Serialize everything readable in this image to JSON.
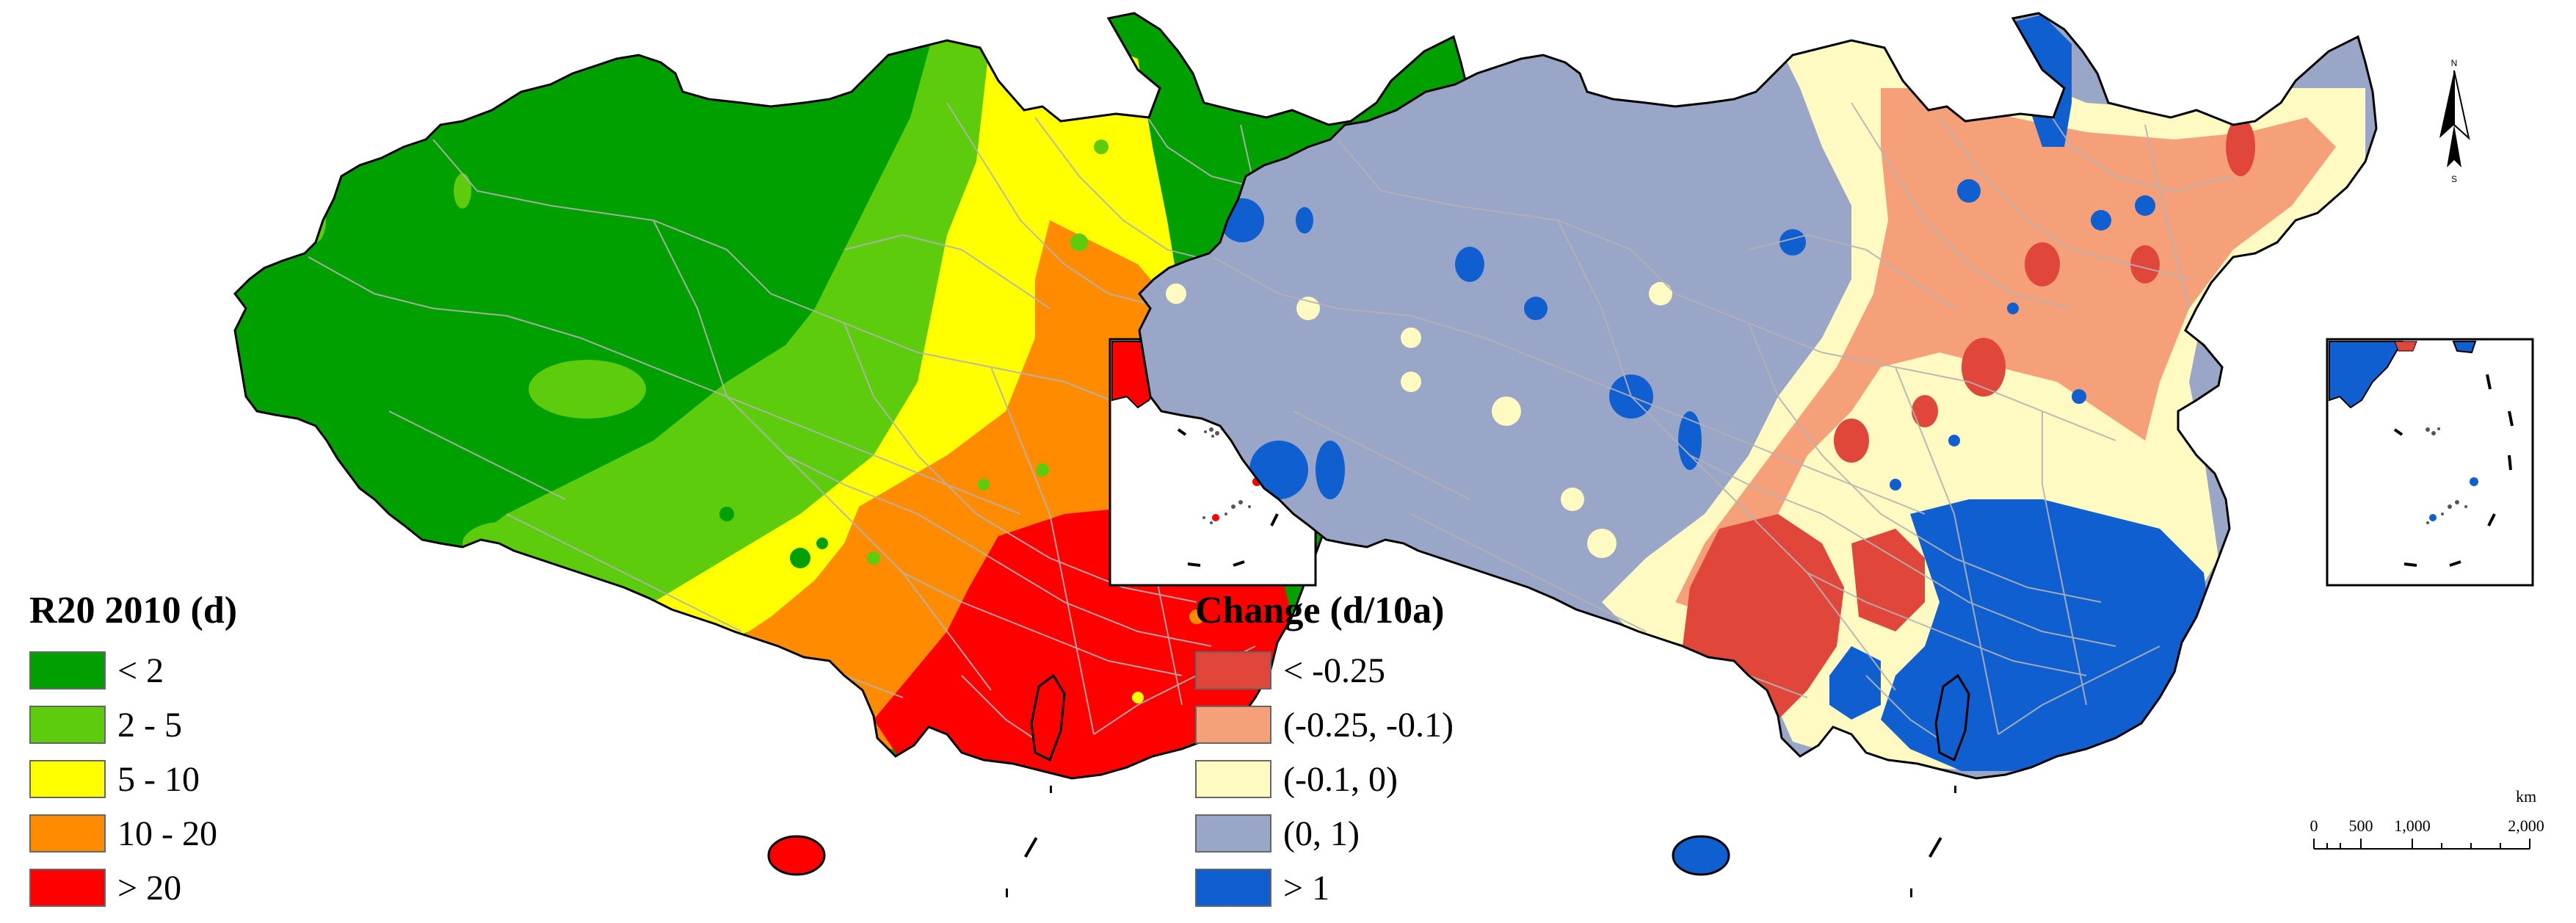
{
  "colors": {
    "map_outline": "#000000",
    "province_border": "#b3b3b3",
    "left_classes": [
      "#00a000",
      "#5ccc0c",
      "#ffff00",
      "#ff8c00",
      "#ff0000"
    ],
    "right_classes": [
      "#e0473a",
      "#f6a07a",
      "#fff9c2",
      "#9aa6c8",
      "#0f5fd0"
    ]
  },
  "left_map": {
    "legend": {
      "title": "R20 2010 (d)",
      "items": [
        {
          "label": "< 2",
          "color": "#00a000"
        },
        {
          "label": "2 - 5",
          "color": "#5ccc0c"
        },
        {
          "label": "5 - 10",
          "color": "#ffff00"
        },
        {
          "label": "10 - 20",
          "color": "#ff8c00"
        },
        {
          "label": "> 20",
          "color": "#ff0000"
        }
      ]
    }
  },
  "right_map": {
    "legend": {
      "title": "Change (d/10a)",
      "items": [
        {
          "label": "< -0.25",
          "color": "#e0473a"
        },
        {
          "label": "(-0.25, -0.1)",
          "color": "#f6a07a"
        },
        {
          "label": "(-0.1, 0)",
          "color": "#fff9c2"
        },
        {
          "label": "(0, 1)",
          "color": "#9aa6c8"
        },
        {
          "label": "> 1",
          "color": "#0f5fd0"
        }
      ]
    }
  },
  "north_arrow": {
    "north_label": "N",
    "south_label": "S"
  },
  "scale_bar": {
    "unit": "km",
    "tick_labels": [
      "0",
      "500",
      "1,000",
      "2,000"
    ]
  }
}
